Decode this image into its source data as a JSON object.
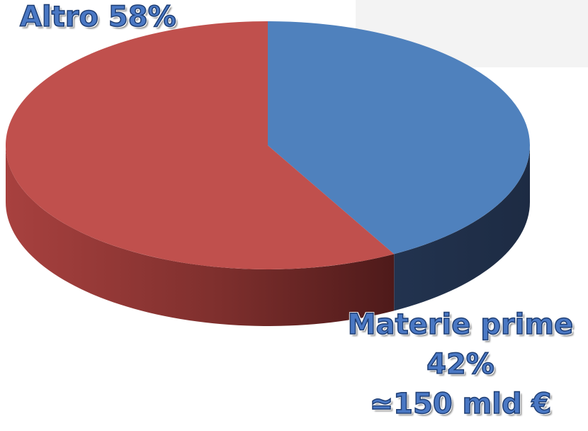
{
  "chart_data": {
    "type": "pie",
    "style": "3d",
    "slices": [
      {
        "label": "Materie prime",
        "value": 42,
        "color": "#4f81bd"
      },
      {
        "label": "Altro",
        "value": 58,
        "color": "#c0504d"
      }
    ],
    "annotations": {
      "altro_text": "Altro 58%",
      "materie_line1": "Materie prime",
      "materie_line2": "42%",
      "materie_line3": "≃150 mld €"
    }
  }
}
